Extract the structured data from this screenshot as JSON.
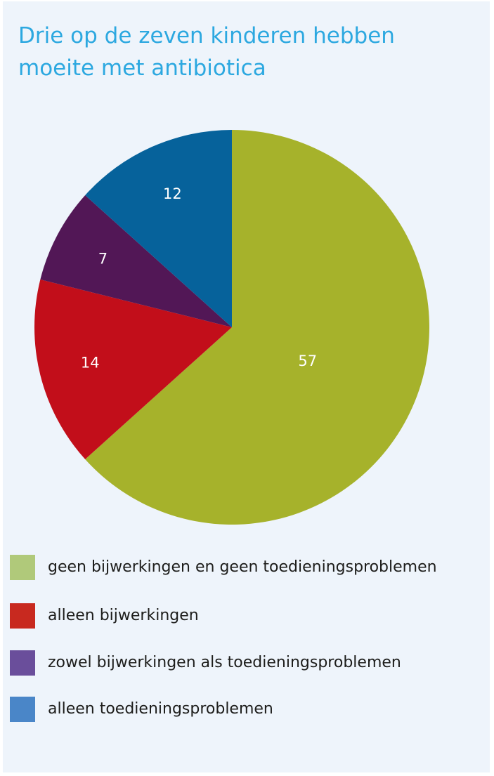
{
  "chart_data": {
    "type": "pie",
    "title": "Drie op de zeven kinderen hebben moeite met antibiotica",
    "slices": [
      {
        "label": "geen bijwerkingen en geen toedieningsproblemen",
        "value": 57,
        "color": "#a6b22b",
        "legend_color": "#b0c97a"
      },
      {
        "label": "alleen bijwerkingen",
        "value": 14,
        "color": "#c20e1a",
        "legend_color": "#c8291f"
      },
      {
        "label": "zowel bijwerkingen als toedieningsproblemen",
        "value": 7,
        "color": "#521756",
        "legend_color": "#6a4e9b"
      },
      {
        "label": "alleen toedieningsproblemen",
        "value": 12,
        "color": "#06629b",
        "legend_color": "#4a86c8"
      }
    ]
  }
}
